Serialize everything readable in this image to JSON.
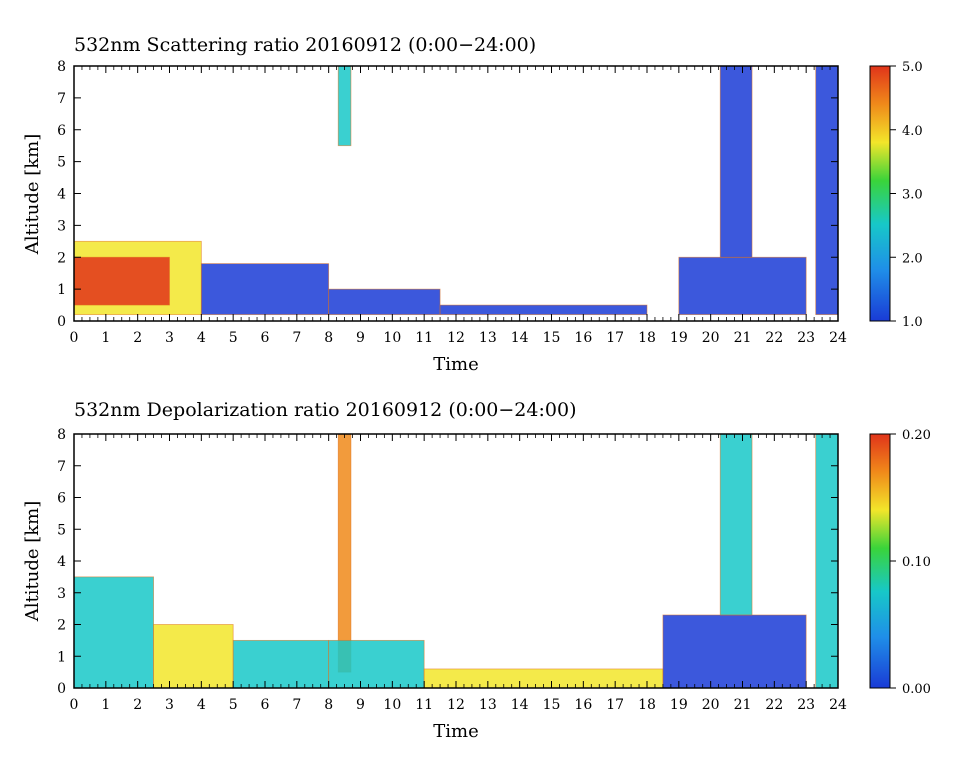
{
  "charts": [
    {
      "id": "scattering",
      "title": "532nm Scattering ratio  20160912 (0:00−24:00)",
      "xlabel": "Time",
      "ylabel": "Altitude [km]",
      "x_ticks": [
        "0",
        "1",
        "2",
        "3",
        "4",
        "5",
        "6",
        "7",
        "8",
        "9",
        "10",
        "11",
        "12",
        "13",
        "14",
        "15",
        "16",
        "17",
        "18",
        "19",
        "20",
        "21",
        "22",
        "23",
        "24"
      ],
      "y_ticks": [
        "0",
        "1",
        "2",
        "3",
        "4",
        "5",
        "6",
        "7",
        "8"
      ],
      "colorbar": {
        "ticks": [
          "1.0",
          "2.0",
          "3.0",
          "4.0",
          "5.0"
        ],
        "range": [
          1.0,
          5.0
        ]
      }
    },
    {
      "id": "depolarization",
      "title": "532nm Depolarization ratio  20160912 (0:00−24:00)",
      "xlabel": "Time",
      "ylabel": "Altitude [km]",
      "x_ticks": [
        "0",
        "1",
        "2",
        "3",
        "4",
        "5",
        "6",
        "7",
        "8",
        "9",
        "10",
        "11",
        "12",
        "13",
        "14",
        "15",
        "16",
        "17",
        "18",
        "19",
        "20",
        "21",
        "22",
        "23",
        "24"
      ],
      "y_ticks": [
        "0",
        "1",
        "2",
        "3",
        "4",
        "5",
        "6",
        "7",
        "8"
      ],
      "colorbar": {
        "ticks": [
          "0.00",
          "0.10",
          "0.20"
        ],
        "range": [
          0.0,
          0.2
        ]
      }
    }
  ],
  "chart_data": [
    {
      "type": "heatmap",
      "title": "532nm Scattering ratio  20160912 (0:00−24:00)",
      "xlabel": "Time",
      "ylabel": "Altitude [km]",
      "xlim": [
        0,
        24
      ],
      "ylim": [
        0,
        8
      ],
      "color_range": [
        1.0,
        5.0
      ],
      "colormap": [
        "#1a3bd6",
        "#17c8c8",
        "#3ad43a",
        "#f2e62a",
        "#f08a1a",
        "#e0341a"
      ],
      "features": [
        {
          "t_start": 0.0,
          "t_end": 4.0,
          "alt_bottom": 0.2,
          "alt_top": 2.5,
          "value": 3.5
        },
        {
          "t_start": 0.0,
          "t_end": 3.0,
          "alt_bottom": 0.5,
          "alt_top": 2.0,
          "value": 4.6
        },
        {
          "t_start": 4.0,
          "t_end": 8.0,
          "alt_bottom": 0.2,
          "alt_top": 1.8,
          "value": 1.6
        },
        {
          "t_start": 8.3,
          "t_end": 8.7,
          "alt_bottom": 5.5,
          "alt_top": 8.0,
          "value": 1.8
        },
        {
          "t_start": 8.0,
          "t_end": 11.5,
          "alt_bottom": 0.2,
          "alt_top": 1.0,
          "value": 1.5
        },
        {
          "t_start": 11.5,
          "t_end": 18.0,
          "alt_bottom": 0.2,
          "alt_top": 0.5,
          "value": 1.3
        },
        {
          "t_start": 19.0,
          "t_end": 23.0,
          "alt_bottom": 0.2,
          "alt_top": 2.0,
          "value": 1.4
        },
        {
          "t_start": 20.3,
          "t_end": 21.3,
          "alt_bottom": 2.0,
          "alt_top": 8.0,
          "value": 1.4
        },
        {
          "t_start": 23.3,
          "t_end": 24.0,
          "alt_bottom": 0.2,
          "alt_top": 8.0,
          "value": 1.3
        }
      ]
    },
    {
      "type": "heatmap",
      "title": "532nm Depolarization ratio  20160912 (0:00−24:00)",
      "xlabel": "Time",
      "ylabel": "Altitude [km]",
      "xlim": [
        0,
        24
      ],
      "ylim": [
        0,
        8
      ],
      "color_range": [
        0.0,
        0.2
      ],
      "colormap": [
        "#1a3bd6",
        "#17c8c8",
        "#3ad43a",
        "#f2e62a",
        "#f08a1a",
        "#e0341a"
      ],
      "features": [
        {
          "t_start": 0.0,
          "t_end": 2.5,
          "alt_bottom": 0.0,
          "alt_top": 3.5,
          "value": 0.04
        },
        {
          "t_start": 2.5,
          "t_end": 5.0,
          "alt_bottom": 0.0,
          "alt_top": 2.0,
          "value": 0.13
        },
        {
          "t_start": 5.0,
          "t_end": 8.0,
          "alt_bottom": 0.0,
          "alt_top": 1.5,
          "value": 0.04
        },
        {
          "t_start": 8.3,
          "t_end": 8.7,
          "alt_bottom": 0.5,
          "alt_top": 8.0,
          "value": 0.14
        },
        {
          "t_start": 8.0,
          "t_end": 11.0,
          "alt_bottom": 0.0,
          "alt_top": 1.5,
          "value": 0.05
        },
        {
          "t_start": 11.0,
          "t_end": 18.5,
          "alt_bottom": 0.0,
          "alt_top": 0.6,
          "value": 0.11
        },
        {
          "t_start": 18.5,
          "t_end": 23.0,
          "alt_bottom": 0.0,
          "alt_top": 2.3,
          "value": 0.03
        },
        {
          "t_start": 20.3,
          "t_end": 21.3,
          "alt_bottom": 2.3,
          "alt_top": 8.0,
          "value": 0.06
        },
        {
          "t_start": 23.3,
          "t_end": 24.0,
          "alt_bottom": 0.0,
          "alt_top": 8.0,
          "value": 0.05
        }
      ]
    }
  ]
}
